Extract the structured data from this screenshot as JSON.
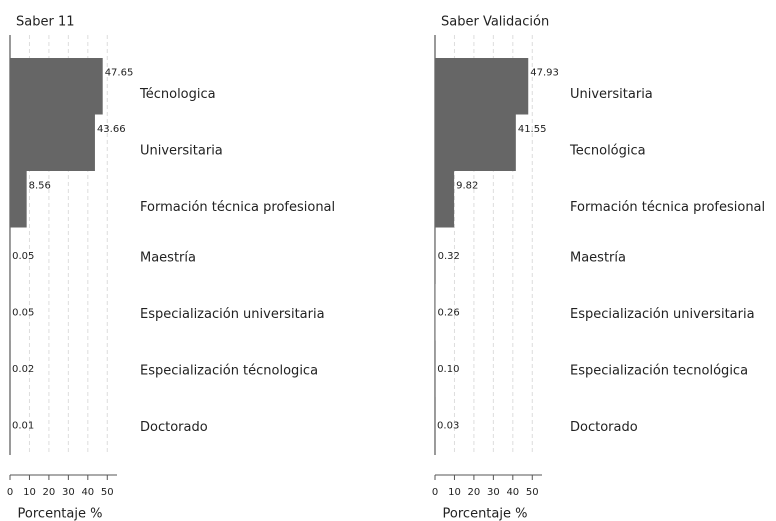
{
  "chart_data": [
    {
      "type": "bar",
      "orientation": "horizontal",
      "title": "Saber 11",
      "x_label": "Porcentaje %",
      "categories": [
        "Técnologica",
        "Universitaria",
        "Formación técnica profesional",
        "Maestría",
        "Especialización universitaria",
        "Especialización técnologica",
        "Doctorado"
      ],
      "values": [
        47.65,
        43.66,
        8.56,
        0.05,
        0.05,
        0.02,
        0.01
      ],
      "color": "#666666",
      "xlim": [
        0,
        55
      ],
      "xticks": [
        0,
        10,
        20,
        30,
        40,
        50
      ],
      "grid": true
    },
    {
      "type": "bar",
      "orientation": "horizontal",
      "title": "Saber Validación",
      "x_label": "Porcentaje %",
      "categories": [
        "Universitaria",
        "Tecnológica",
        "Formación técnica profesional",
        "Maestría",
        "Especialización universitaria",
        "Especialización tecnológica",
        "Doctorado"
      ],
      "values": [
        47.93,
        41.55,
        9.82,
        0.32,
        0.26,
        0.1,
        0.03
      ],
      "value_labels": [
        "47.93",
        "41.55",
        "9.82",
        "0.32",
        "0.26",
        "0.10",
        "0.03"
      ],
      "color": "#666666",
      "xlim": [
        0,
        55
      ],
      "xticks": [
        0,
        10,
        20,
        30,
        40,
        50
      ],
      "grid": true
    }
  ]
}
